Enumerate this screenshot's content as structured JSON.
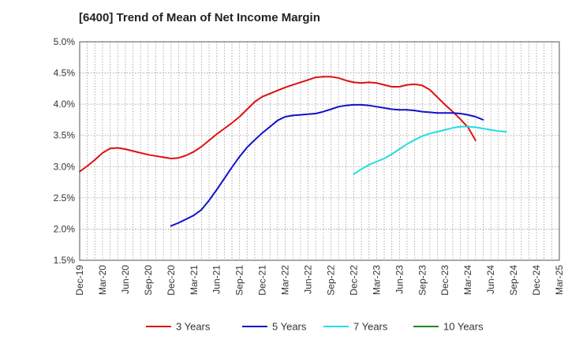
{
  "chart_data": {
    "type": "line",
    "title": "[6400]  Trend of Mean of Net Income Margin",
    "xlabel": "",
    "ylabel": "",
    "ylim": [
      1.5,
      5.0
    ],
    "y_ticks": [
      "1.5%",
      "2.0%",
      "2.5%",
      "3.0%",
      "3.5%",
      "4.0%",
      "4.5%",
      "5.0%"
    ],
    "y_tick_values": [
      1.5,
      2.0,
      2.5,
      3.0,
      3.5,
      4.0,
      4.5,
      5.0
    ],
    "x_ticks": [
      "Dec-19",
      "Mar-20",
      "Jun-20",
      "Sep-20",
      "Dec-20",
      "Mar-21",
      "Jun-21",
      "Sep-21",
      "Dec-21",
      "Mar-22",
      "Jun-22",
      "Sep-22",
      "Dec-22",
      "Mar-23",
      "Jun-23",
      "Sep-23",
      "Dec-23",
      "Mar-24",
      "Jun-24",
      "Sep-24",
      "Dec-24",
      "Mar-25"
    ],
    "grid": true,
    "legend_position": "bottom",
    "series": [
      {
        "name": "3 Years",
        "color": "#dd1111",
        "start_index": 0,
        "values": [
          2.92,
          3.01,
          3.11,
          3.22,
          3.29,
          3.3,
          3.28,
          3.25,
          3.22,
          3.19,
          3.17,
          3.15,
          3.13,
          3.14,
          3.18,
          3.24,
          3.32,
          3.42,
          3.52,
          3.61,
          3.7,
          3.8,
          3.92,
          4.04,
          4.12,
          4.17,
          4.22,
          4.27,
          4.31,
          4.35,
          4.39,
          4.43,
          4.44,
          4.44,
          4.42,
          4.38,
          4.35,
          4.34,
          4.35,
          4.34,
          4.31,
          4.28,
          4.28,
          4.31,
          4.32,
          4.3,
          4.23,
          4.11,
          3.99,
          3.88,
          3.76,
          3.63,
          3.42
        ]
      },
      {
        "name": "5 Years",
        "color": "#1111cc",
        "start_index": 12,
        "values": [
          2.05,
          2.1,
          2.16,
          2.22,
          2.31,
          2.46,
          2.63,
          2.81,
          2.99,
          3.16,
          3.31,
          3.43,
          3.54,
          3.64,
          3.74,
          3.8,
          3.82,
          3.83,
          3.84,
          3.85,
          3.88,
          3.92,
          3.96,
          3.98,
          3.99,
          3.99,
          3.98,
          3.96,
          3.94,
          3.92,
          3.91,
          3.91,
          3.9,
          3.88,
          3.87,
          3.86,
          3.86,
          3.86,
          3.85,
          3.83,
          3.8,
          3.75
        ]
      },
      {
        "name": "7 Years",
        "color": "#22dddd",
        "start_index": 36,
        "values": [
          2.88,
          2.96,
          3.03,
          3.08,
          3.13,
          3.2,
          3.28,
          3.36,
          3.43,
          3.49,
          3.53,
          3.56,
          3.59,
          3.62,
          3.64,
          3.64,
          3.63,
          3.61,
          3.59,
          3.57,
          3.56
        ]
      },
      {
        "name": "10 Years",
        "color": "#228822",
        "start_index": 0,
        "values": []
      }
    ]
  }
}
